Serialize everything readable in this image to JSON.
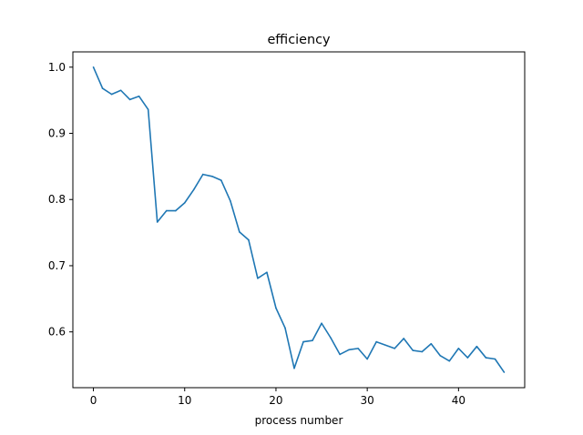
{
  "chart_data": {
    "type": "line",
    "title": "efficiency",
    "xlabel": "process number",
    "ylabel": "",
    "xlim": [
      -2.25,
      47.25
    ],
    "ylim": [
      0.5157,
      1.0231
    ],
    "xticks": [
      0,
      10,
      20,
      30,
      40
    ],
    "xtick_labels": [
      "0",
      "10",
      "20",
      "30",
      "40"
    ],
    "yticks": [
      0.6,
      0.7,
      0.8,
      0.9,
      1.0
    ],
    "ytick_labels": [
      "0.6",
      "0.7",
      "0.8",
      "0.9",
      "1.0"
    ],
    "grid": false,
    "series": [
      {
        "color": "#1f77b4",
        "x": [
          0,
          1,
          2,
          3,
          4,
          5,
          6,
          7,
          8,
          9,
          10,
          11,
          12,
          13,
          14,
          15,
          16,
          17,
          18,
          19,
          20,
          21,
          22,
          23,
          24,
          25,
          26,
          27,
          28,
          29,
          30,
          31,
          32,
          33,
          34,
          35,
          36,
          37,
          38,
          39,
          40,
          41,
          42,
          43,
          44,
          45
        ],
        "values": [
          1.0,
          0.968,
          0.959,
          0.965,
          0.951,
          0.956,
          0.936,
          0.766,
          0.783,
          0.783,
          0.795,
          0.815,
          0.838,
          0.835,
          0.829,
          0.798,
          0.751,
          0.739,
          0.681,
          0.69,
          0.636,
          0.606,
          0.545,
          0.585,
          0.587,
          0.613,
          0.591,
          0.566,
          0.573,
          0.575,
          0.559,
          0.585,
          0.58,
          0.575,
          0.59,
          0.572,
          0.57,
          0.582,
          0.564,
          0.556,
          0.575,
          0.561,
          0.578,
          0.561,
          0.559,
          0.539
        ]
      }
    ]
  }
}
